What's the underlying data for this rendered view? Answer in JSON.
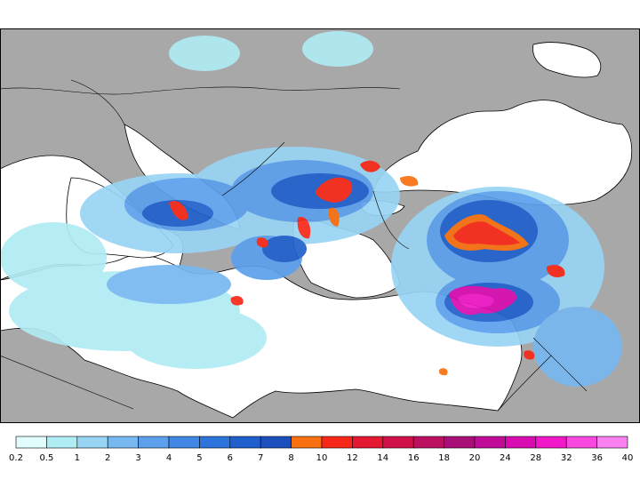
{
  "legend": {
    "colors": [
      "#e0fcfc",
      "#b0ecf4",
      "#98d4f4",
      "#78b8f0",
      "#5ca0ec",
      "#4088e4",
      "#2c74dc",
      "#2060cc",
      "#1c50bc",
      "#f87010",
      "#f82818",
      "#e41830",
      "#d01048",
      "#bc1060",
      "#a81078",
      "#c00c98",
      "#d80cb0",
      "#f018c8",
      "#f848e0",
      "#f880f0"
    ],
    "labels": [
      "0.2",
      "0.5",
      "1",
      "2",
      "3",
      "4",
      "5",
      "6",
      "7",
      "8",
      "10",
      "12",
      "14",
      "16",
      "18",
      "20",
      "24",
      "28",
      "32",
      "36",
      "40"
    ]
  }
}
